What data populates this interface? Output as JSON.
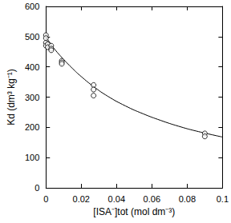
{
  "chart_data": {
    "type": "scatter",
    "x_label": "[ISA⁻]tot (mol dm⁻³)",
    "y_label": "Kd (dm³ kg⁻¹)",
    "xlim": [
      0,
      0.1
    ],
    "xticks": [
      0,
      0.02,
      0.04,
      0.06,
      0.08,
      0.1
    ],
    "ylim": [
      0,
      600
    ],
    "yticks": [
      0,
      100,
      200,
      300,
      400,
      500,
      600
    ],
    "grid": false,
    "series": [
      {
        "type": "scatter",
        "marker": "circle-open",
        "color": "#000000",
        "x": [
          0,
          0,
          0,
          0,
          0.001,
          0.001,
          0.003,
          0.003,
          0.003,
          0.009,
          0.009,
          0.009,
          0.027,
          0.027,
          0.027,
          0.09,
          0.09
        ],
        "values": [
          505,
          495,
          480,
          470,
          475,
          465,
          470,
          460,
          455,
          420,
          415,
          410,
          340,
          325,
          305,
          180,
          170
        ]
      },
      {
        "type": "line",
        "line_style": "solid",
        "color": "#000000",
        "x": [
          0,
          0.002,
          0.005,
          0.01,
          0.015,
          0.02,
          0.027,
          0.035,
          0.045,
          0.055,
          0.065,
          0.075,
          0.085,
          0.1
        ],
        "values": [
          500,
          482,
          458,
          425,
          395,
          368,
          335,
          303,
          271,
          245,
          223,
          204,
          188,
          168
        ]
      }
    ]
  }
}
